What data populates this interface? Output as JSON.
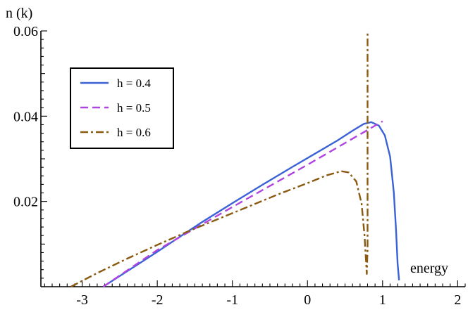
{
  "chart_data": {
    "type": "line",
    "xlabel": "energy",
    "ylabel": "n (k)",
    "xlim": [
      -3.55,
      2.1
    ],
    "ylim": [
      0.0,
      0.06
    ],
    "x_ticks": [
      -3,
      -2,
      -1,
      0,
      1,
      2
    ],
    "x_tick_labels": [
      "-3",
      "-2",
      "-1",
      "0",
      "1",
      "2"
    ],
    "y_ticks": [
      0.02,
      0.04,
      0.06
    ],
    "y_tick_labels": [
      "0.02",
      "0.04",
      "0.06"
    ],
    "legend_position": "top-left",
    "series": [
      {
        "name": "h = 0.4",
        "color": "#3a62d6",
        "dash": "solid",
        "points": [
          [
            -2.72,
            0.0
          ],
          [
            -2.5,
            0.0025
          ],
          [
            -2.2,
            0.0059
          ],
          [
            -2.0,
            0.0082
          ],
          [
            -1.7,
            0.0117
          ],
          [
            -1.4,
            0.0152
          ],
          [
            -1.0,
            0.0196
          ],
          [
            -0.6,
            0.0239
          ],
          [
            -0.2,
            0.0281
          ],
          [
            0.1,
            0.0312
          ],
          [
            0.4,
            0.0343
          ],
          [
            0.6,
            0.0366
          ],
          [
            0.75,
            0.0382
          ],
          [
            0.85,
            0.0386
          ],
          [
            0.95,
            0.0378
          ],
          [
            1.03,
            0.0355
          ],
          [
            1.1,
            0.0305
          ],
          [
            1.15,
            0.022
          ],
          [
            1.18,
            0.013
          ],
          [
            1.2,
            0.0055
          ],
          [
            1.22,
            0.0015
          ]
        ]
      },
      {
        "name": "h = 0.5",
        "color": "#b044e0",
        "dash": "dashed",
        "points": [
          [
            -2.72,
            0.0
          ],
          [
            -2.0,
            0.0086
          ],
          [
            -1.0,
            0.0187
          ],
          [
            0.0,
            0.0286
          ],
          [
            1.0,
            0.0388
          ]
        ]
      },
      {
        "name": "h = 0.6",
        "color": "#8a5a10",
        "dash": "dashdot",
        "points": [
          [
            -3.15,
            0.0
          ],
          [
            -2.8,
            0.0032
          ],
          [
            -2.4,
            0.0066
          ],
          [
            -2.0,
            0.0098
          ],
          [
            -1.6,
            0.0129
          ],
          [
            -1.2,
            0.0158
          ],
          [
            -0.8,
            0.0187
          ],
          [
            -0.4,
            0.0216
          ],
          [
            0.0,
            0.0243
          ],
          [
            0.25,
            0.0261
          ],
          [
            0.45,
            0.0271
          ],
          [
            0.55,
            0.0268
          ],
          [
            0.65,
            0.0247
          ],
          [
            0.72,
            0.0195
          ],
          [
            0.76,
            0.012
          ],
          [
            0.78,
            0.0058
          ],
          [
            0.79,
            0.003
          ],
          [
            0.8,
            0.009
          ],
          [
            0.8,
            0.03
          ],
          [
            0.8,
            0.05
          ],
          [
            0.8,
            0.0595
          ]
        ]
      }
    ]
  }
}
